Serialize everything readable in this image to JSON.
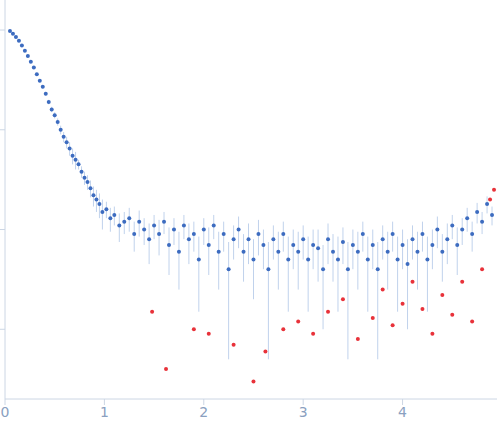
{
  "chart_data": {
    "type": "scatter",
    "log": "y",
    "grid": false,
    "tick_labels": "x",
    "xlim": [
      0,
      4.95
    ],
    "xticks": [
      0,
      1,
      2,
      3,
      4
    ],
    "ylim": [
      0.0002,
      2
    ],
    "yticks": [
      0.001,
      0.01,
      0.1,
      1
    ],
    "series": [
      {
        "color": "#3d6cc0",
        "marker": "circle",
        "x": [
          0.05,
          0.08,
          0.11,
          0.14,
          0.17,
          0.2,
          0.23,
          0.26,
          0.29,
          0.32,
          0.35,
          0.38,
          0.41,
          0.44,
          0.47,
          0.5,
          0.53,
          0.56,
          0.59,
          0.62,
          0.65,
          0.68,
          0.71,
          0.74,
          0.77,
          0.8,
          0.83,
          0.86,
          0.89,
          0.92,
          0.95,
          0.98,
          1.02,
          1.06,
          1.1,
          1.15,
          1.2,
          1.25,
          1.3,
          1.35,
          1.4,
          1.45,
          1.5,
          1.55,
          1.6,
          1.65,
          1.7,
          1.75,
          1.8,
          1.85,
          1.9,
          1.95,
          2.0,
          2.05,
          2.1,
          2.15,
          2.2,
          2.25,
          2.3,
          2.35,
          2.4,
          2.45,
          2.5,
          2.55,
          2.6,
          2.65,
          2.7,
          2.75,
          2.8,
          2.85,
          2.9,
          2.95,
          3.0,
          3.05,
          3.1,
          3.15,
          3.2,
          3.25,
          3.3,
          3.35,
          3.4,
          3.45,
          3.5,
          3.55,
          3.6,
          3.65,
          3.7,
          3.75,
          3.8,
          3.85,
          3.9,
          3.95,
          4.0,
          4.05,
          4.1,
          4.15,
          4.2,
          4.25,
          4.3,
          4.35,
          4.4,
          4.45,
          4.5,
          4.55,
          4.6,
          4.65,
          4.7,
          4.75,
          4.8,
          4.85,
          4.9
        ],
        "values": [
          0.98,
          0.92,
          0.85,
          0.78,
          0.7,
          0.62,
          0.55,
          0.48,
          0.42,
          0.36,
          0.31,
          0.27,
          0.23,
          0.19,
          0.16,
          0.14,
          0.12,
          0.1,
          0.085,
          0.075,
          0.065,
          0.055,
          0.05,
          0.045,
          0.038,
          0.033,
          0.03,
          0.026,
          0.022,
          0.02,
          0.018,
          0.015,
          0.016,
          0.013,
          0.014,
          0.011,
          0.012,
          0.013,
          0.009,
          0.012,
          0.01,
          0.008,
          0.011,
          0.009,
          0.012,
          0.007,
          0.01,
          0.006,
          0.011,
          0.008,
          0.009,
          0.005,
          0.01,
          0.007,
          0.011,
          0.006,
          0.009,
          0.004,
          0.008,
          0.01,
          0.006,
          0.008,
          0.005,
          0.009,
          0.007,
          0.004,
          0.008,
          0.006,
          0.009,
          0.005,
          0.007,
          0.006,
          0.008,
          0.005,
          0.007,
          0.0065,
          0.004,
          0.008,
          0.006,
          0.005,
          0.0075,
          0.004,
          0.007,
          0.006,
          0.009,
          0.005,
          0.007,
          0.004,
          0.008,
          0.006,
          0.009,
          0.005,
          0.007,
          0.0045,
          0.008,
          0.006,
          0.009,
          0.005,
          0.007,
          0.01,
          0.006,
          0.008,
          0.011,
          0.007,
          0.01,
          0.013,
          0.009,
          0.015,
          0.012,
          0.018,
          0.014
        ],
        "errors": [
          0.01,
          0.01,
          0.01,
          0.01,
          0.01,
          0.01,
          0.01,
          0.01,
          0.01,
          0.01,
          0.01,
          0.01,
          0.01,
          0.01,
          0.01,
          0.01,
          0.01,
          0.01,
          0.01,
          0.01,
          0.01,
          0.01,
          0.01,
          0.005,
          0.005,
          0.005,
          0.005,
          0.005,
          0.005,
          0.005,
          0.005,
          0.005,
          0.003,
          0.0035,
          0.003,
          0.0035,
          0.003,
          0.0035,
          0.003,
          0.0035,
          0.003,
          0.0035,
          0.003,
          0.0035,
          0.003,
          0.0035,
          0.003,
          0.0035,
          0.003,
          0.0035,
          0.003,
          0.0035,
          0.003,
          0.0035,
          0.003,
          0.0035,
          0.003,
          0.0035,
          0.003,
          0.0035,
          0.003,
          0.0035,
          0.003,
          0.0035,
          0.003,
          0.0035,
          0.003,
          0.0035,
          0.003,
          0.0035,
          0.003,
          0.0035,
          0.003,
          0.0035,
          0.003,
          0.0035,
          0.003,
          0.0035,
          0.003,
          0.0035,
          0.003,
          0.0035,
          0.003,
          0.0035,
          0.003,
          0.0035,
          0.003,
          0.0035,
          0.003,
          0.0035,
          0.003,
          0.0035,
          0.003,
          0.0035,
          0.003,
          0.0035,
          0.003,
          0.0035,
          0.003,
          0.0035,
          0.003,
          0.0035,
          0.003,
          0.0035,
          0.003,
          0.0035,
          0.003,
          0.0035,
          0.003,
          0.0035,
          0.003
        ]
      },
      {
        "color": "#e8323a",
        "marker": "circle",
        "x": [
          1.48,
          1.62,
          1.9,
          2.05,
          2.3,
          2.5,
          2.62,
          2.8,
          2.95,
          3.1,
          3.25,
          3.4,
          3.55,
          3.7,
          3.8,
          3.9,
          4.0,
          4.1,
          4.2,
          4.3,
          4.4,
          4.5,
          4.6,
          4.7,
          4.8,
          4.88,
          4.92
        ],
        "values": [
          0.0015,
          0.0004,
          0.001,
          0.0009,
          0.0007,
          0.0003,
          0.0006,
          0.001,
          0.0012,
          0.0009,
          0.0015,
          0.002,
          0.0008,
          0.0013,
          0.0025,
          0.0011,
          0.0018,
          0.003,
          0.0016,
          0.0009,
          0.0022,
          0.0014,
          0.003,
          0.0012,
          0.004,
          0.02,
          0.025
        ]
      }
    ]
  }
}
